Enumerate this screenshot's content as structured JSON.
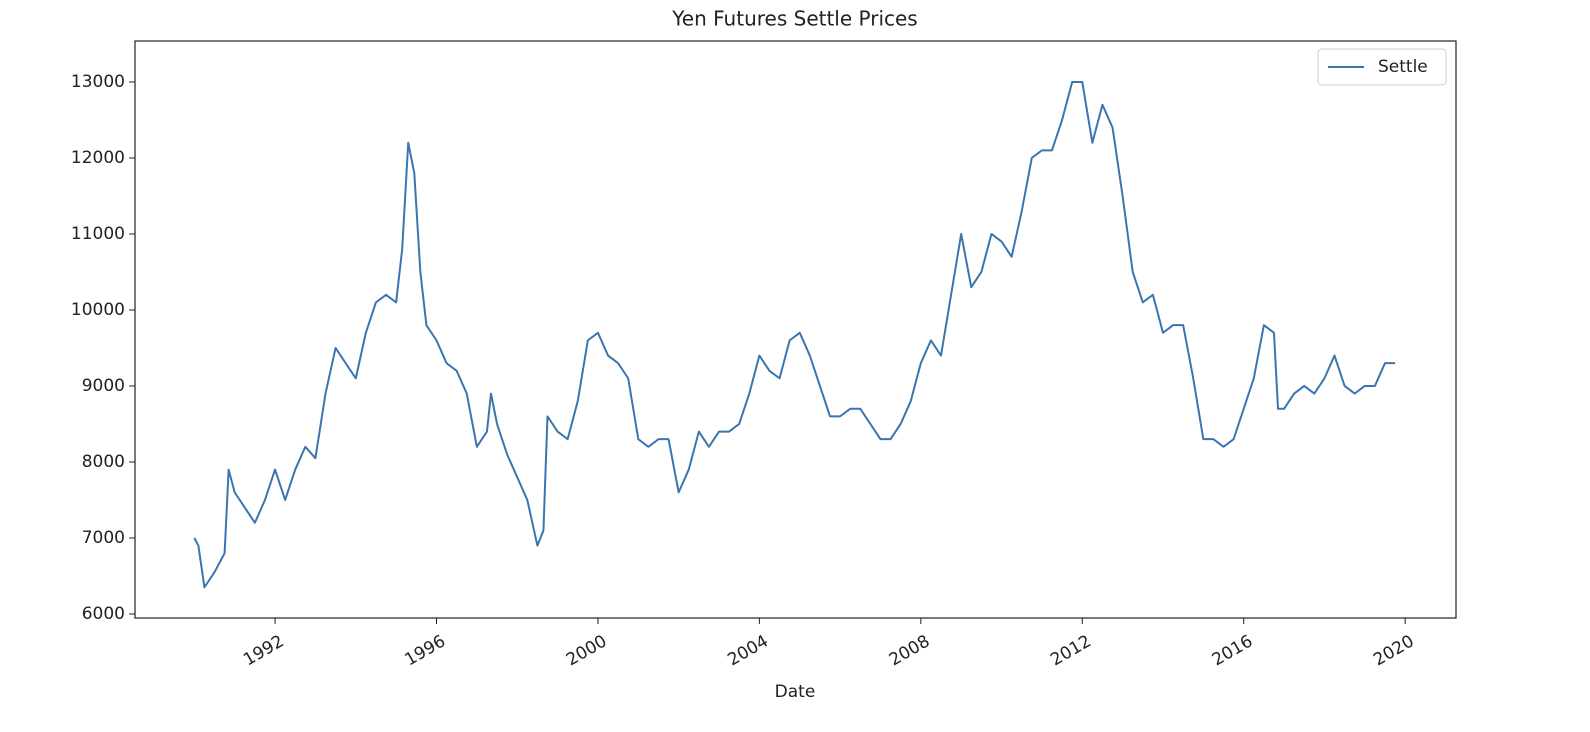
{
  "chart_data": {
    "type": "line",
    "title": "Yen Futures Settle Prices",
    "x_label": "Date",
    "x": [
      1990.0,
      1990.1,
      1990.25,
      1990.5,
      1990.75,
      1990.85,
      1991.0,
      1991.25,
      1991.5,
      1991.75,
      1992.0,
      1992.25,
      1992.5,
      1992.75,
      1993.0,
      1993.25,
      1993.5,
      1993.75,
      1994.0,
      1994.25,
      1994.5,
      1994.75,
      1995.0,
      1995.15,
      1995.3,
      1995.45,
      1995.6,
      1995.75,
      1996.0,
      1996.25,
      1996.5,
      1996.75,
      1997.0,
      1997.25,
      1997.35,
      1997.5,
      1997.75,
      1998.0,
      1998.25,
      1998.5,
      1998.65,
      1998.75,
      1999.0,
      1999.25,
      1999.5,
      1999.75,
      2000.0,
      2000.25,
      2000.5,
      2000.75,
      2001.0,
      2001.25,
      2001.5,
      2001.75,
      2002.0,
      2002.25,
      2002.5,
      2002.75,
      2003.0,
      2003.25,
      2003.5,
      2003.75,
      2004.0,
      2004.25,
      2004.5,
      2004.75,
      2005.0,
      2005.25,
      2005.5,
      2005.75,
      2006.0,
      2006.25,
      2006.5,
      2006.75,
      2007.0,
      2007.25,
      2007.5,
      2007.75,
      2008.0,
      2008.25,
      2008.5,
      2008.75,
      2009.0,
      2009.25,
      2009.5,
      2009.75,
      2010.0,
      2010.25,
      2010.5,
      2010.75,
      2011.0,
      2011.25,
      2011.5,
      2011.75,
      2012.0,
      2012.25,
      2012.5,
      2012.75,
      2013.0,
      2013.25,
      2013.5,
      2013.75,
      2014.0,
      2014.25,
      2014.5,
      2014.75,
      2015.0,
      2015.25,
      2015.5,
      2015.75,
      2016.0,
      2016.25,
      2016.5,
      2016.75,
      2016.85,
      2017.0,
      2017.25,
      2017.5,
      2017.75,
      2018.0,
      2018.25,
      2018.5,
      2018.75,
      2019.0,
      2019.25,
      2019.5,
      2019.75
    ],
    "series": [
      {
        "name": "Settle",
        "color": "#3a75b0",
        "values": [
          7000,
          6900,
          6350,
          6550,
          6800,
          7900,
          7600,
          7400,
          7200,
          7500,
          7900,
          7500,
          7900,
          8200,
          8050,
          8900,
          9500,
          9300,
          9100,
          9700,
          10100,
          10200,
          10100,
          10800,
          12200,
          11800,
          10500,
          9800,
          9600,
          9300,
          9200,
          8900,
          8200,
          8400,
          8900,
          8500,
          8100,
          7800,
          7500,
          6900,
          7100,
          8600,
          8400,
          8300,
          8800,
          9600,
          9700,
          9400,
          9300,
          9100,
          8300,
          8200,
          8300,
          8300,
          7600,
          7900,
          8400,
          8200,
          8400,
          8400,
          8500,
          8900,
          9400,
          9200,
          9100,
          9600,
          9700,
          9400,
          9000,
          8600,
          8600,
          8700,
          8700,
          8500,
          8300,
          8300,
          8500,
          8800,
          9300,
          9600,
          9400,
          10200,
          11000,
          10300,
          10500,
          11000,
          10900,
          10700,
          11300,
          12000,
          12100,
          12100,
          12500,
          13000,
          13000,
          12200,
          12700,
          12400,
          11500,
          10500,
          10100,
          10200,
          9700,
          9800,
          9800,
          9100,
          8300,
          8300,
          8200,
          8300,
          8700,
          9100,
          9800,
          9700,
          8700,
          8700,
          8900,
          9000,
          8900,
          9100,
          9400,
          9000,
          8900,
          9000,
          9000,
          9300,
          9300
        ]
      }
    ],
    "xlim": [
      1988.53,
      2021.26
    ],
    "xticks": [
      1992,
      1996,
      2000,
      2004,
      2008,
      2012,
      2016,
      2020
    ],
    "ylim": [
      5947,
      13539
    ],
    "yticks": [
      6000,
      7000,
      8000,
      9000,
      10000,
      11000,
      12000,
      13000
    ],
    "legend": "upper right"
  }
}
